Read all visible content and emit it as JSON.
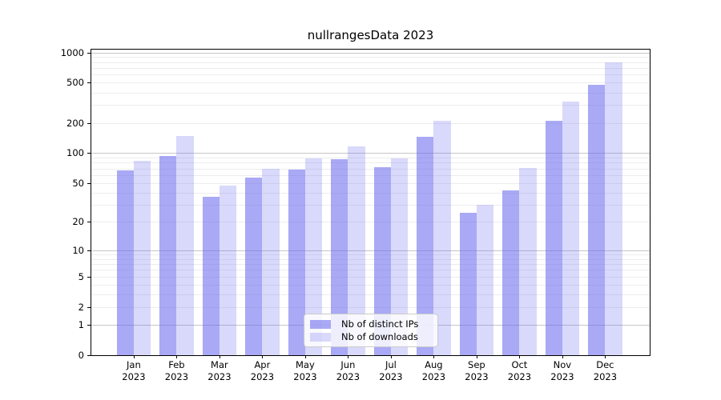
{
  "chart_data": {
    "type": "bar",
    "title": "nullrangesData 2023",
    "categories": [
      "Jan",
      "Feb",
      "Mar",
      "Apr",
      "May",
      "Jun",
      "Jul",
      "Aug",
      "Sep",
      "Oct",
      "Nov",
      "Dec"
    ],
    "category_year": "2023",
    "series": [
      {
        "name": "Nb of distinct IPs",
        "color": "#6666ee",
        "alpha": 0.56,
        "values": [
          67,
          94,
          36,
          57,
          68,
          87,
          72,
          146,
          25,
          42,
          209,
          474
        ]
      },
      {
        "name": "Nb of downloads",
        "color": "#6666ee",
        "alpha": 0.25,
        "values": [
          84,
          148,
          47,
          69,
          89,
          117,
          89,
          210,
          30,
          71,
          323,
          790
        ]
      }
    ],
    "yscale": "log1p",
    "ylim": [
      0,
      1066
    ],
    "yticks": [
      0,
      1,
      2,
      5,
      10,
      20,
      50,
      100,
      200,
      500,
      1000
    ],
    "major_gridlines": [
      1,
      10,
      100,
      1000
    ],
    "minor_gridlines": [
      2,
      3,
      4,
      5,
      6,
      7,
      8,
      9,
      20,
      30,
      40,
      60,
      70,
      80,
      90,
      200,
      300,
      400,
      600,
      700,
      800,
      900,
      50,
      500
    ],
    "grid": true,
    "legend_position": "lower center"
  }
}
